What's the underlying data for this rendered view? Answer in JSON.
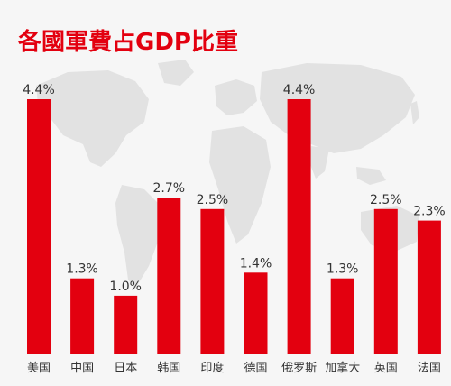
{
  "chart_data": {
    "type": "bar",
    "title": "各國軍費占GDP比重",
    "categories": [
      "美国",
      "中国",
      "日本",
      "韩国",
      "印度",
      "德国",
      "俄罗斯",
      "加拿大",
      "英国",
      "法国"
    ],
    "values": [
      4.4,
      1.3,
      1.0,
      2.7,
      2.5,
      1.4,
      4.4,
      1.3,
      2.5,
      2.3
    ],
    "value_labels": [
      "4.4%",
      "1.3%",
      "1.0%",
      "2.7%",
      "2.5%",
      "1.4%",
      "4.4%",
      "1.3%",
      "2.5%",
      "2.3%"
    ],
    "xlabel": "",
    "ylabel": "",
    "ylim": [
      0,
      4.4
    ],
    "grid": false,
    "bar_color": "#e3000f",
    "title_color": "#e3000f",
    "background_decoration": "world-map"
  }
}
